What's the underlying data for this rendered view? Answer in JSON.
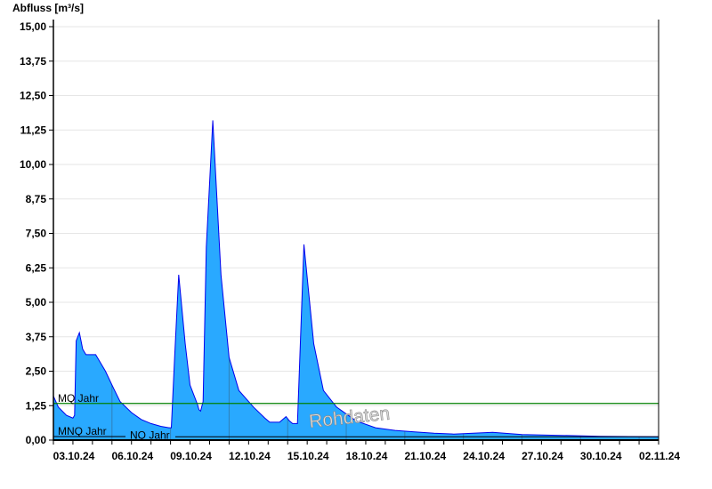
{
  "chart_data": {
    "type": "area",
    "ylabel": "Abfluss [m³/s]",
    "ylim": [
      0,
      15
    ],
    "yticks": [
      "0,00",
      "1,25",
      "2,50",
      "3,75",
      "5,00",
      "6,25",
      "7,50",
      "8,75",
      "10,00",
      "11,25",
      "12,50",
      "13,75",
      "15,00"
    ],
    "xlim": [
      "2024-10-03T00:00",
      "2024-11-03T00:00"
    ],
    "xticks": [
      "03.10.24",
      "06.10.24",
      "09.10.24",
      "12.10.24",
      "15.10.24",
      "18.10.24",
      "21.10.24",
      "24.10.24",
      "27.10.24",
      "30.10.24",
      "02.11.24"
    ],
    "grid": true,
    "colors": {
      "fill": "#29a9ff",
      "line": "#0000ee",
      "mq": "#008000",
      "nq": "#000000",
      "grid": "#e6e6e6"
    },
    "reference_lines": [
      {
        "label": "MQ Jahr",
        "value": 1.33
      },
      {
        "label": "MNQ Jahr",
        "value": 0.13
      },
      {
        "label": "NQ Jahr",
        "value": 0.12
      }
    ],
    "watermark": "Rohdaten",
    "series": [
      {
        "x": [
          "2024-10-03T00:00",
          "2024-10-03T06:00",
          "2024-10-03T16:00",
          "2024-10-04T00:00",
          "2024-10-04T02:00",
          "2024-10-04T04:00",
          "2024-10-04T08:00",
          "2024-10-04T12:00",
          "2024-10-04T16:00",
          "2024-10-05T04:00",
          "2024-10-05T16:00",
          "2024-10-06T00:00",
          "2024-10-06T10:00",
          "2024-10-07T00:00",
          "2024-10-07T12:00",
          "2024-10-08T00:00",
          "2024-10-08T12:00",
          "2024-10-08T22:00",
          "2024-10-09T01:00",
          "2024-10-09T05:00",
          "2024-10-09T10:00",
          "2024-10-09T18:00",
          "2024-10-10T00:00",
          "2024-10-10T09:00",
          "2024-10-10T11:00",
          "2024-10-10T13:00",
          "2024-10-10T16:00",
          "2024-10-10T20:00",
          "2024-10-11T04:00",
          "2024-10-11T14:00",
          "2024-10-12T00:00",
          "2024-10-12T12:00",
          "2024-10-13T06:00",
          "2024-10-13T20:00",
          "2024-10-14T02:00",
          "2024-10-14T08:00",
          "2024-10-14T14:00",
          "2024-10-14T22:00",
          "2024-10-15T02:00",
          "2024-10-15T06:00",
          "2024-10-15T12:00",
          "2024-10-15T20:00",
          "2024-10-16T08:00",
          "2024-10-16T20:00",
          "2024-10-17T12:00",
          "2024-10-18T12:00",
          "2024-10-19T12:00",
          "2024-10-20T12:00",
          "2024-10-21T12:00",
          "2024-10-22T12:00",
          "2024-10-23T12:00",
          "2024-10-24T12:00",
          "2024-10-25T12:00",
          "2024-10-27T00:00",
          "2024-10-29T00:00",
          "2024-10-31T00:00",
          "2024-11-03T00:00"
        ],
        "y": [
          1.6,
          1.2,
          0.9,
          0.8,
          0.9,
          3.6,
          3.9,
          3.3,
          3.1,
          3.1,
          2.5,
          2.0,
          1.4,
          1.0,
          0.75,
          0.6,
          0.5,
          0.45,
          0.45,
          3.0,
          6.0,
          3.5,
          2.0,
          1.3,
          1.1,
          1.05,
          1.4,
          7.0,
          11.6,
          6.0,
          3.0,
          1.8,
          1.2,
          0.8,
          0.65,
          0.65,
          0.65,
          0.85,
          0.7,
          0.6,
          0.6,
          7.1,
          3.5,
          1.8,
          1.2,
          0.7,
          0.45,
          0.35,
          0.3,
          0.25,
          0.22,
          0.25,
          0.28,
          0.2,
          0.17,
          0.14,
          0.12
        ]
      }
    ]
  }
}
